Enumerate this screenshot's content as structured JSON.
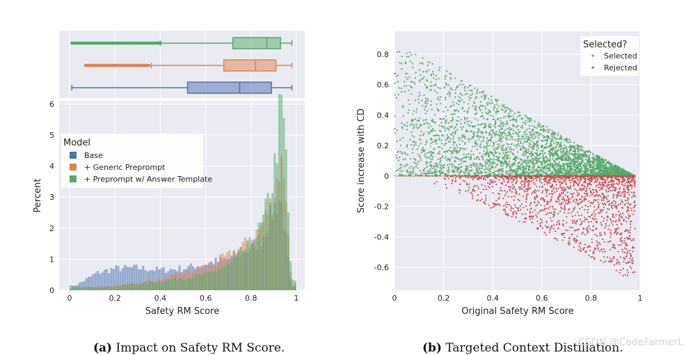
{
  "chart_data": [
    {
      "id": "a",
      "type": "boxplot+histogram",
      "xlabel": "Safety RM Score",
      "ylabel": "Percent",
      "xlim": [
        0,
        1
      ],
      "ylim": [
        0,
        6.1
      ],
      "xticks": [
        0,
        0.2,
        0.4,
        0.6,
        0.8,
        1
      ],
      "xtick_labels": [
        "0",
        "0.2",
        "0.4",
        "0.6",
        "0.8",
        "1"
      ],
      "yticks": [
        0,
        1,
        2,
        3,
        4,
        5,
        6
      ],
      "legend": {
        "title": "Model",
        "placement": "upper-left"
      },
      "series": [
        {
          "name": "Base",
          "color": "#4c72b0",
          "box": {
            "whisker_low": 0.01,
            "q1": 0.52,
            "median": 0.75,
            "q3": 0.89,
            "whisker_high": 0.98,
            "outliers_from": null,
            "outliers_to": null
          },
          "hist_shape": [
            [
              0,
              0.05
            ],
            [
              0.05,
              0.25
            ],
            [
              0.12,
              0.55
            ],
            [
              0.2,
              0.7
            ],
            [
              0.3,
              0.72
            ],
            [
              0.4,
              0.65
            ],
            [
              0.5,
              0.7
            ],
            [
              0.6,
              0.85
            ],
            [
              0.7,
              1.0
            ],
            [
              0.8,
              1.35
            ],
            [
              0.85,
              1.7
            ],
            [
              0.9,
              2.6
            ],
            [
              0.93,
              3.0
            ],
            [
              0.95,
              2.0
            ],
            [
              0.97,
              0.6
            ],
            [
              0.98,
              0.1
            ]
          ]
        },
        {
          "name": "+ Generic Preprompt",
          "color": "#dd8452",
          "box": {
            "whisker_low": 0.36,
            "q1": 0.68,
            "median": 0.82,
            "q3": 0.91,
            "whisker_high": 0.98,
            "outliers_from": 0.07,
            "outliers_to": 0.35
          },
          "hist_shape": [
            [
              0,
              0.02
            ],
            [
              0.1,
              0.1
            ],
            [
              0.2,
              0.15
            ],
            [
              0.3,
              0.25
            ],
            [
              0.4,
              0.35
            ],
            [
              0.5,
              0.55
            ],
            [
              0.6,
              0.75
            ],
            [
              0.7,
              1.1
            ],
            [
              0.8,
              1.6
            ],
            [
              0.85,
              2.1
            ],
            [
              0.9,
              3.0
            ],
            [
              0.93,
              4.1
            ],
            [
              0.95,
              3.8
            ],
            [
              0.97,
              1.0
            ],
            [
              0.98,
              0.2
            ]
          ]
        },
        {
          "name": "+ Preprompt w/ Answer Template",
          "color": "#55a868",
          "box": {
            "whisker_low": 0.4,
            "q1": 0.72,
            "median": 0.87,
            "q3": 0.93,
            "whisker_high": 0.98,
            "outliers_from": 0.01,
            "outliers_to": 0.4
          },
          "hist_shape": [
            [
              0,
              0.15
            ],
            [
              0.05,
              0.1
            ],
            [
              0.2,
              0.12
            ],
            [
              0.4,
              0.3
            ],
            [
              0.6,
              0.5
            ],
            [
              0.7,
              0.8
            ],
            [
              0.8,
              1.5
            ],
            [
              0.85,
              2.1
            ],
            [
              0.9,
              3.6
            ],
            [
              0.93,
              5.9
            ],
            [
              0.95,
              5.1
            ],
            [
              0.97,
              1.6
            ],
            [
              0.98,
              0.3
            ]
          ]
        }
      ]
    },
    {
      "id": "b",
      "type": "scatter",
      "xlabel": "Original Safety RM Score",
      "ylabel": "Score increase with CD",
      "xlim": [
        0,
        1
      ],
      "ylim": [
        -0.75,
        0.95
      ],
      "xticks": [
        0,
        0.2,
        0.4,
        0.6,
        0.8,
        1
      ],
      "xtick_labels": [
        "0",
        "0.2",
        "0.4",
        "0.6",
        "0.8",
        "1"
      ],
      "yticks": [
        -0.6,
        -0.4,
        -0.2,
        0,
        0.2,
        0.4,
        0.6,
        0.8
      ],
      "ytick_labels": [
        "-0.6",
        "-0.4",
        "-0.2",
        "0",
        "0.2",
        "0.4",
        "0.6",
        "0.8"
      ],
      "legend": {
        "title": "Selected?",
        "placement": "top-right"
      },
      "series": [
        {
          "name": "Selected",
          "color": "#55a868",
          "x_range": [
            0,
            0.98
          ],
          "y_max_at_x0": 0.88,
          "y_min": 0
        },
        {
          "name": "Rejected",
          "color": "#c44e52",
          "x_range": [
            0.12,
            0.98
          ],
          "y_min_approx": -0.63,
          "y_max": 0
        }
      ]
    }
  ],
  "captions": {
    "a_label": "(a)",
    "a_text": "Impact on Safety RM Score.",
    "b_label": "(b)",
    "b_text": "Targeted Context Distillation."
  },
  "watermark": "CSDN @CodeFarmerL"
}
